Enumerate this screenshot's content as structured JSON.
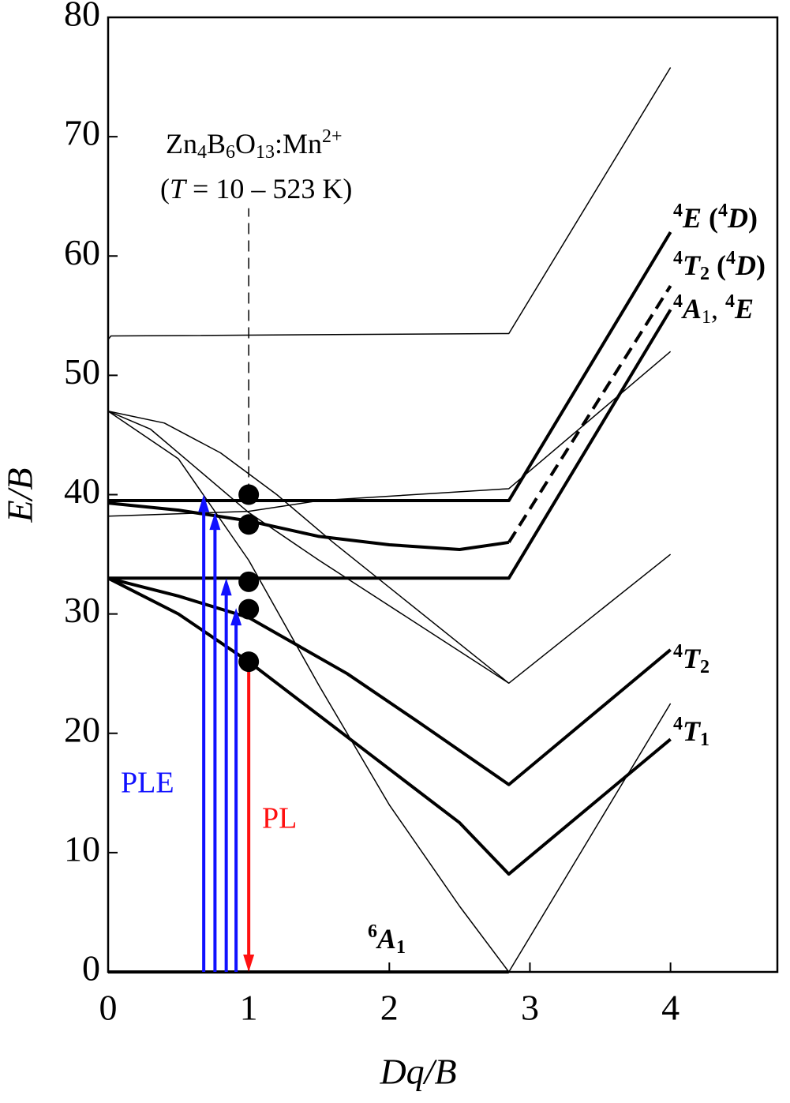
{
  "chart_data": {
    "type": "line",
    "xlabel": "Dq/B",
    "ylabel": "E/B",
    "xlim": [
      0,
      4.76
    ],
    "ylim": [
      0,
      80
    ],
    "xticks": [
      0,
      1,
      2,
      3,
      4
    ],
    "yticks": [
      0,
      10,
      20,
      30,
      40,
      50,
      60,
      70,
      80
    ],
    "compound": [
      "Zn",
      "4",
      "B",
      "6",
      "O",
      "13",
      ":Mn",
      "2+"
    ],
    "condition": [
      "(",
      "T",
      " = 10 – 523 K)"
    ],
    "curve_labels": [
      [
        "4",
        "E",
        " (",
        "4",
        "D",
        ")"
      ],
      [
        "4",
        "T",
        "2",
        " (",
        "4",
        "D",
        ")"
      ],
      [
        "4",
        "A",
        "1",
        ", ",
        "4",
        "E"
      ],
      [
        "4",
        "T",
        "2"
      ],
      [
        "4",
        "T",
        "1"
      ],
      [
        "6",
        "A",
        "1"
      ]
    ],
    "ple_label": "PLE",
    "pl_label": "PL",
    "series": [
      {
        "color": "#000000",
        "linewidth": 4,
        "dash": false,
        "x": [
          0,
          2.85
        ],
        "values": [
          0,
          0
        ]
      },
      {
        "color": "#000000",
        "linewidth": 4,
        "dash": false,
        "x": [
          0,
          0.5,
          1,
          1.5,
          2,
          2.5,
          2.85,
          4
        ],
        "values": [
          33,
          30,
          26,
          21.5,
          17,
          12.5,
          8.2,
          19.5
        ]
      },
      {
        "color": "#000000",
        "linewidth": 4,
        "dash": false,
        "x": [
          0,
          0.5,
          1,
          1.7,
          2.2,
          2.85,
          4
        ],
        "values": [
          33,
          31.5,
          29.7,
          25,
          21,
          15.7,
          27
        ]
      },
      {
        "color": "#000000",
        "linewidth": 4,
        "dash": false,
        "x": [
          0,
          2.85,
          4
        ],
        "values": [
          33,
          33,
          55.5
        ]
      },
      {
        "color": "#000000",
        "linewidth": 4,
        "dash": false,
        "x": [
          0,
          2.85,
          4
        ],
        "values": [
          39.5,
          39.5,
          62
        ]
      },
      {
        "color": "#000000",
        "linewidth": 4,
        "dash": false,
        "x": [
          0,
          0.5,
          1,
          1.5,
          2,
          2.5,
          2.85
        ],
        "values": [
          39.3,
          38.7,
          37.8,
          36.5,
          35.8,
          35.4,
          36
        ]
      },
      {
        "color": "#000000",
        "linewidth": 4,
        "dash": true,
        "x": [
          2.85,
          4
        ],
        "values": [
          36,
          57.5
        ]
      },
      {
        "color": "#000000",
        "linewidth": 1.5,
        "dash": false,
        "x": [
          0,
          0.02,
          2.85,
          4
        ],
        "values": [
          53,
          53.3,
          53.5,
          75.8
        ]
      },
      {
        "color": "#000000",
        "linewidth": 1.5,
        "dash": false,
        "x": [
          0,
          1,
          1.5,
          2.85,
          4
        ],
        "values": [
          38.2,
          38.6,
          39.5,
          40.5,
          52
        ]
      },
      {
        "color": "#000000",
        "linewidth": 1.5,
        "dash": false,
        "x": [
          0,
          0.4,
          0.8,
          1.2,
          1.6,
          2.85,
          4
        ],
        "values": [
          47,
          46,
          43.5,
          40,
          36,
          24.2,
          35
        ]
      },
      {
        "color": "#000000",
        "linewidth": 1.5,
        "dash": false,
        "x": [
          0,
          0.3,
          0.6,
          1,
          1.5,
          2.85
        ],
        "values": [
          47,
          45.5,
          42.5,
          38.5,
          34.5,
          24.2
        ]
      },
      {
        "color": "#000000",
        "linewidth": 1.5,
        "dash": false,
        "x": [
          0,
          0.5,
          1,
          1.5,
          2,
          2.5,
          2.85,
          4
        ],
        "values": [
          47,
          43,
          34.5,
          24,
          14,
          5.5,
          0,
          22.5
        ]
      }
    ],
    "guide": {
      "x": 1,
      "ylim": [
        40,
        64
      ]
    },
    "marked_levels": {
      "x": 1,
      "values": [
        40,
        37.5,
        32.7,
        30.4,
        26
      ],
      "color": "#000000"
    },
    "excitation": {
      "color": "#1010ff",
      "x": [
        0.68,
        0.76,
        0.84,
        0.91
      ],
      "values": [
        40,
        38.5,
        33,
        30.5
      ]
    },
    "emission": {
      "color": "#ff1010",
      "x": 1,
      "from": 26,
      "to": 0
    }
  }
}
